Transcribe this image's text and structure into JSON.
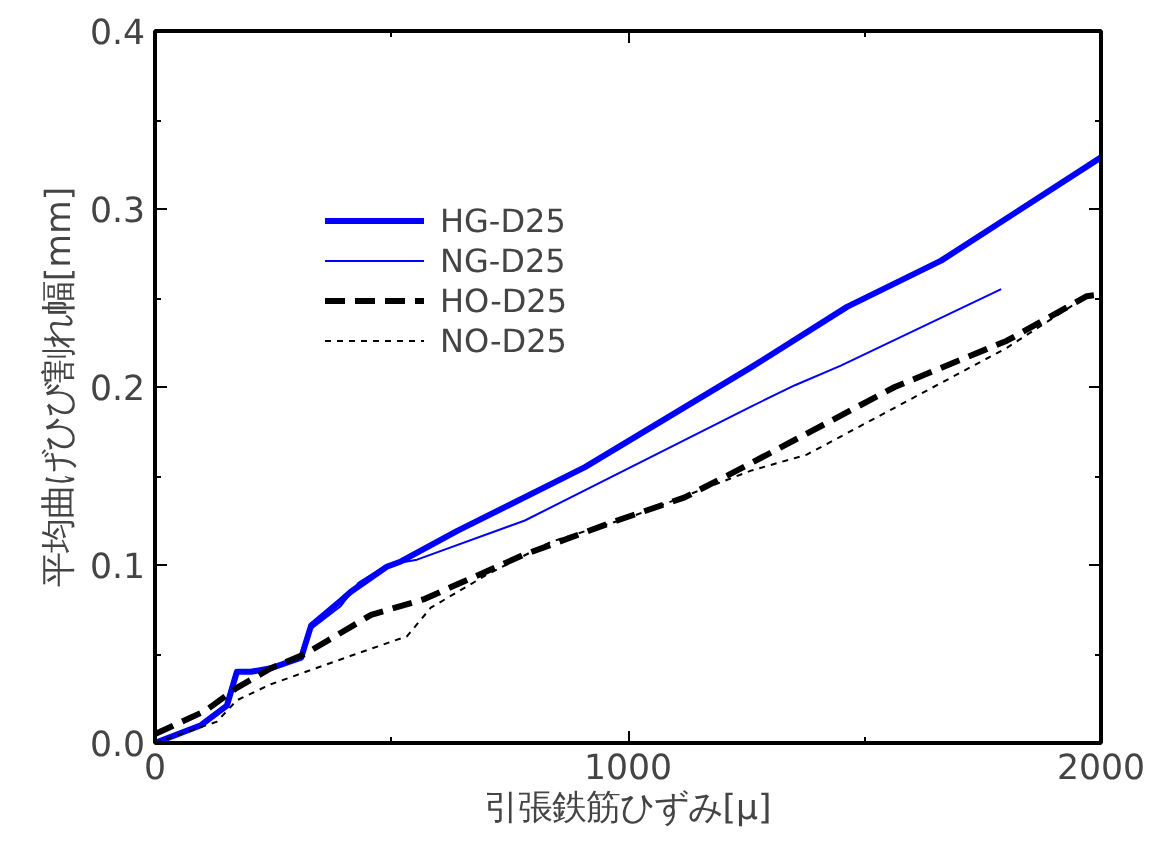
{
  "chart_data": {
    "type": "line",
    "xlabel": "引張鉄筋ひずみ[μ]",
    "ylabel": "平均曲げひび割れ幅[mm]",
    "xlim": [
      0,
      2000
    ],
    "xticks": [
      0,
      1000,
      2000
    ],
    "ylim": [
      0,
      0.4
    ],
    "yticks": [
      {
        "value": 0,
        "label": "0.0"
      },
      0.1,
      0.2,
      0.3,
      0.4
    ],
    "grid": false,
    "legend": "top left",
    "marker": "none",
    "series": [
      {
        "name": "HG-D25",
        "color": "#0000ff",
        "line_style": "solid",
        "x": [
          0,
          97,
          152,
          173,
          203,
          245,
          309,
          330,
          393,
          414,
          490,
          520,
          638,
          909,
          1260,
          1463,
          1662,
          2000
        ],
        "values": [
          0,
          0.01,
          0.021,
          0.04,
          0.04,
          0.042,
          0.048,
          0.066,
          0.08,
          0.085,
          0.099,
          0.102,
          0.119,
          0.155,
          0.211,
          0.245,
          0.271,
          0.329
        ]
      },
      {
        "name": "NG-D25",
        "color": "#0000ff",
        "line_style": "solid",
        "x": [
          0,
          97,
          152,
          173,
          203,
          245,
          309,
          330,
          393,
          430,
          490,
          554,
          782,
          1260,
          1353,
          1450,
          1789
        ],
        "values": [
          0,
          0.01,
          0.021,
          0.04,
          0.04,
          0.042,
          0.05,
          0.064,
          0.077,
          0.09,
          0.1,
          0.103,
          0.125,
          0.189,
          0.201,
          0.212,
          0.255
        ]
      },
      {
        "name": "HO-D25",
        "color": "#000000",
        "line_style": "dashed",
        "x": [
          0,
          106,
          173,
          245,
          317,
          457,
          571,
          638,
          782,
          977,
          1120,
          1230,
          1564,
          1801,
          1970,
          2000
        ],
        "values": [
          0.005,
          0.018,
          0.031,
          0.042,
          0.05,
          0.072,
          0.081,
          0.089,
          0.106,
          0.125,
          0.138,
          0.153,
          0.2,
          0.226,
          0.251,
          0.252
        ]
      },
      {
        "name": "NO-D25",
        "color": "#000000",
        "line_style": "dotted",
        "x": [
          0,
          131,
          173,
          245,
          414,
          533,
          583,
          698,
          837,
          1006,
          1260,
          1378,
          1801,
          1970
        ],
        "values": [
          0,
          0.012,
          0.024,
          0.033,
          0.049,
          0.06,
          0.076,
          0.094,
          0.113,
          0.127,
          0.153,
          0.162,
          0.222,
          0.251
        ]
      }
    ]
  }
}
